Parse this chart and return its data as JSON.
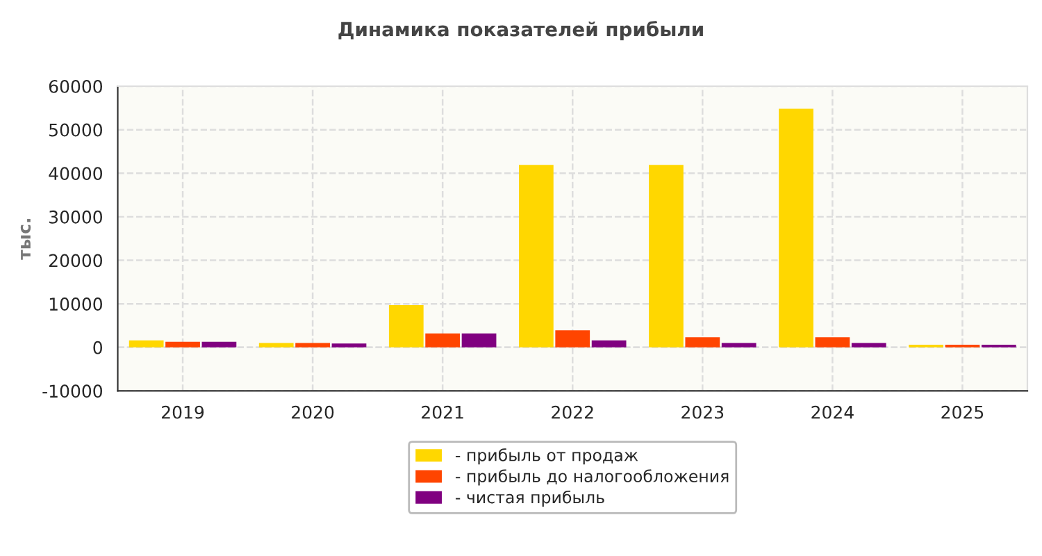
{
  "chart_data": {
    "type": "bar",
    "title": "Динамика показателей прибыли",
    "ylabel": "тыс.",
    "categories": [
      "2019",
      "2020",
      "2021",
      "2022",
      "2023",
      "2024",
      "2025"
    ],
    "series": [
      {
        "name": "- прибыль от продаж",
        "color": "#ffd700",
        "values": [
          1600,
          1000,
          9700,
          41900,
          41900,
          54800,
          600
        ]
      },
      {
        "name": "- прибыль до налогообложения",
        "color": "#ff4500",
        "values": [
          1300,
          1000,
          3200,
          3900,
          2300,
          2300,
          600
        ]
      },
      {
        "name": "- чистая прибыль",
        "color": "#800080",
        "values": [
          1300,
          900,
          3200,
          1600,
          1000,
          1000,
          600
        ]
      }
    ],
    "ylim": [
      -10000,
      60000
    ],
    "yticks": [
      -10000,
      0,
      10000,
      20000,
      30000,
      40000,
      50000,
      60000
    ],
    "grid": true,
    "legend": "bottom"
  }
}
